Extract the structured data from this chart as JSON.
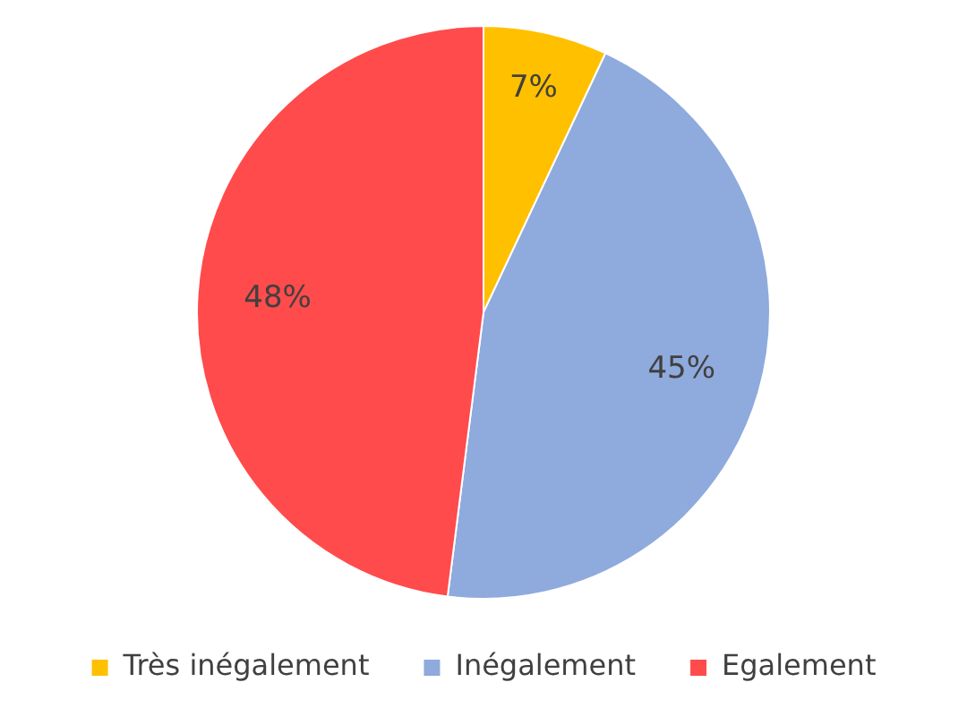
{
  "chart_data": {
    "type": "pie",
    "categories": [
      "Très inégalement",
      "Inégalement",
      "Egalement"
    ],
    "values": [
      7,
      45,
      48
    ],
    "colors": [
      "#ffc000",
      "#8faadc",
      "#ff4b4b"
    ],
    "value_labels": [
      "7%",
      "45%",
      "48%"
    ],
    "legend": "bottom"
  }
}
